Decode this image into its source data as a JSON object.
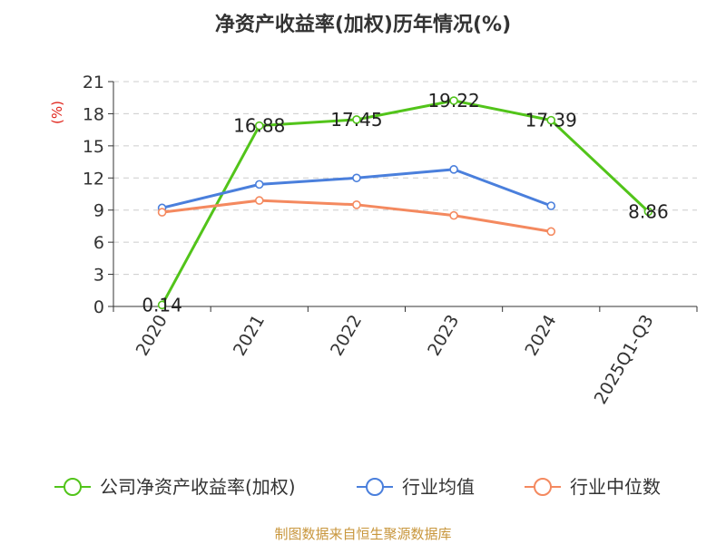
{
  "chart_data": {
    "type": "line",
    "title": "净资产收益率(加权)历年情况(%)",
    "ylabel": "(%)",
    "xlabel": "",
    "categories": [
      "2020",
      "2021",
      "2022",
      "2023",
      "2024",
      "2025Q1-Q3"
    ],
    "ylim": [
      0,
      21
    ],
    "yticks": [
      0,
      3,
      6,
      9,
      12,
      15,
      18,
      21
    ],
    "grid": true,
    "legend_position": "bottom",
    "series": [
      {
        "name": "公司净资产收益率(加权)",
        "color": "#52c41a",
        "values": [
          0.14,
          16.88,
          17.45,
          19.22,
          17.39,
          8.86
        ],
        "labels": [
          "0.14",
          "16.88",
          "17.45",
          "19.22",
          "17.39",
          "8.86"
        ]
      },
      {
        "name": "行业均值",
        "color": "#4a7fdc",
        "values": [
          9.2,
          11.4,
          12.0,
          12.8,
          9.4,
          null
        ]
      },
      {
        "name": "行业中位数",
        "color": "#f4895f",
        "values": [
          8.8,
          9.9,
          9.5,
          8.5,
          7.0,
          null
        ]
      }
    ],
    "source": "制图数据来自恒生聚源数据库"
  }
}
